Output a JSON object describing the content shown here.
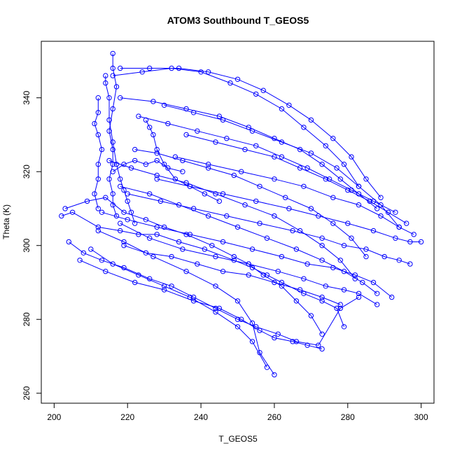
{
  "chart_data": {
    "type": "scatter",
    "title": "ATOM3 Southbound T_GEOS5",
    "xlabel": "T_GEOS5",
    "ylabel": "Theta (K)",
    "xlim": [
      196.5,
      303.5
    ],
    "ylim": [
      257.3,
      355.3
    ],
    "xticks": [
      200,
      220,
      240,
      260,
      280,
      300
    ],
    "yticks": [
      260,
      280,
      300,
      320,
      340
    ],
    "grid": false,
    "legend": "none",
    "point_style": "open-circle-with-connecting-lines",
    "color": "#0000ff",
    "series": [
      {
        "x": [
          202,
          205,
          212,
          218,
          223,
          228,
          234,
          241,
          249,
          254,
          258,
          262,
          268,
          273,
          277,
          279
        ],
        "y": [
          308,
          309,
          305,
          304,
          303,
          303,
          301,
          299,
          296,
          294,
          292,
          290,
          287,
          285,
          283,
          278
        ]
      },
      {
        "x": [
          203,
          209,
          214,
          219,
          225,
          230,
          236,
          243,
          249,
          253,
          257,
          262,
          266,
          270,
          273
        ],
        "y": [
          310,
          312,
          313,
          309,
          307,
          305,
          303,
          300,
          297,
          295,
          292,
          289,
          285,
          281,
          276
        ]
      },
      {
        "x": [
          204,
          208,
          213,
          219,
          226,
          232,
          238,
          244,
          250,
          255,
          261,
          266,
          272,
          278,
          283
        ],
        "y": [
          301,
          298,
          296,
          294,
          291,
          289,
          286,
          283,
          280,
          278,
          276,
          274,
          273,
          283,
          286
        ]
      },
      {
        "x": [
          207,
          214,
          222,
          230,
          238,
          245,
          251,
          256,
          260,
          265,
          269,
          273
        ],
        "y": [
          296,
          293,
          290,
          288,
          285,
          283,
          280,
          277,
          275,
          274,
          273,
          272
        ]
      },
      {
        "x": [
          210,
          216,
          223,
          230,
          237,
          244,
          250,
          254,
          258
        ],
        "y": [
          299,
          295,
          292,
          289,
          286,
          282,
          278,
          274,
          267
        ]
      },
      {
        "x": [
          212,
          219,
          227,
          236,
          244,
          250,
          254,
          256,
          260
        ],
        "y": [
          304,
          301,
          297,
          293,
          289,
          285,
          279,
          271,
          265
        ]
      },
      {
        "x": [
          218,
          226,
          235,
          244,
          253,
          261,
          268,
          274,
          279,
          283,
          288
        ],
        "y": [
          306,
          302,
          299,
          297,
          295,
          293,
          291,
          289,
          288,
          287,
          284
        ]
      },
      {
        "x": [
          213,
          220,
          228,
          237,
          246,
          254,
          262,
          269,
          276,
          282,
          287,
          292
        ],
        "y": [
          309,
          307,
          305,
          303,
          301,
          299,
          297,
          295,
          294,
          292,
          290,
          286
        ]
      },
      {
        "x": [
          220,
          229,
          238,
          247,
          256,
          265,
          273,
          279,
          285,
          290,
          294,
          297
        ],
        "y": [
          314,
          312,
          310,
          308,
          306,
          304,
          302,
          300,
          299,
          297,
          296,
          295
        ]
      },
      {
        "x": [
          228,
          237,
          246,
          255,
          264,
          272,
          280,
          287,
          293,
          297,
          300
        ],
        "y": [
          318,
          316,
          314,
          312,
          310,
          308,
          306,
          304,
          302,
          301,
          301
        ]
      },
      {
        "x": [
          233,
          242,
          251,
          260,
          268,
          276,
          283,
          289,
          294,
          298
        ],
        "y": [
          324,
          322,
          320,
          318,
          316,
          313,
          311,
          308,
          305,
          303
        ]
      },
      {
        "x": [
          236,
          244,
          252,
          260,
          267,
          274,
          280,
          286,
          291,
          296
        ],
        "y": [
          330,
          328,
          326,
          324,
          321,
          318,
          315,
          312,
          309,
          306
        ]
      },
      {
        "x": [
          223,
          231,
          239,
          247,
          255,
          262,
          269,
          275,
          281,
          287,
          293
        ],
        "y": [
          335,
          333,
          331,
          329,
          327,
          324,
          321,
          318,
          315,
          312,
          309
        ]
      },
      {
        "x": [
          218,
          227,
          236,
          245,
          253,
          260,
          267,
          273,
          278,
          283,
          288
        ],
        "y": [
          340,
          339,
          337,
          335,
          332,
          329,
          326,
          322,
          318,
          314,
          310
        ]
      },
      {
        "x": [
          216,
          224,
          232,
          240,
          248,
          255,
          262,
          268,
          274,
          279,
          283
        ],
        "y": [
          346,
          347,
          348,
          347,
          344,
          341,
          337,
          332,
          327,
          322,
          316
        ]
      },
      {
        "x": [
          218,
          226,
          234,
          242,
          250,
          257,
          264,
          270,
          276,
          281,
          285,
          289
        ],
        "y": [
          348,
          348,
          348,
          347,
          345,
          342,
          338,
          334,
          329,
          324,
          318,
          313
        ]
      },
      {
        "x": [
          216,
          216,
          217,
          216,
          215,
          216,
          216,
          215,
          216,
          216,
          217
        ],
        "y": [
          352,
          348,
          343,
          337,
          331,
          326,
          322,
          318,
          314,
          311,
          308
        ]
      },
      {
        "x": [
          212,
          212,
          211,
          212,
          213,
          212,
          212,
          211,
          212
        ],
        "y": [
          340,
          336,
          333,
          330,
          326,
          322,
          318,
          314,
          310
        ]
      },
      {
        "x": [
          214,
          214,
          215,
          215,
          216,
          217,
          218,
          219,
          220,
          221,
          222
        ],
        "y": [
          346,
          344,
          340,
          334,
          328,
          322,
          318,
          315,
          312,
          309,
          306
        ]
      },
      {
        "x": [
          216,
          219,
          222,
          225,
          228,
          231,
          235
        ],
        "y": [
          320,
          322,
          323,
          322,
          323,
          321,
          320
        ]
      },
      {
        "x": [
          225,
          226,
          227,
          228,
          230,
          233,
          237,
          241,
          245
        ],
        "y": [
          334,
          332,
          330,
          326,
          322,
          318,
          316,
          314,
          312
        ]
      },
      {
        "x": [
          222,
          228,
          235,
          242,
          249,
          256,
          263,
          270,
          276,
          281,
          285
        ],
        "y": [
          326,
          325,
          323,
          321,
          319,
          316,
          313,
          310,
          306,
          302,
          297
        ]
      },
      {
        "x": [
          215,
          221,
          228,
          236,
          244,
          252,
          260,
          267,
          273,
          278,
          282
        ],
        "y": [
          323,
          321,
          319,
          317,
          314,
          311,
          308,
          304,
          300,
          296,
          291
        ]
      },
      {
        "x": [
          230,
          238,
          246,
          254,
          262,
          270,
          277,
          283,
          289,
          294
        ],
        "y": [
          338,
          336,
          334,
          331,
          328,
          325,
          321,
          316,
          311,
          305
        ]
      },
      {
        "x": [
          218,
          226,
          234,
          242,
          250,
          258,
          266,
          273,
          279,
          284,
          288
        ],
        "y": [
          316,
          314,
          311,
          308,
          305,
          302,
          299,
          296,
          293,
          290,
          287
        ]
      },
      {
        "x": [
          219,
          225,
          232,
          239,
          246,
          253,
          260,
          267,
          273,
          278
        ],
        "y": [
          300,
          298,
          297,
          295,
          293,
          292,
          290,
          288,
          286,
          284
        ]
      }
    ]
  }
}
